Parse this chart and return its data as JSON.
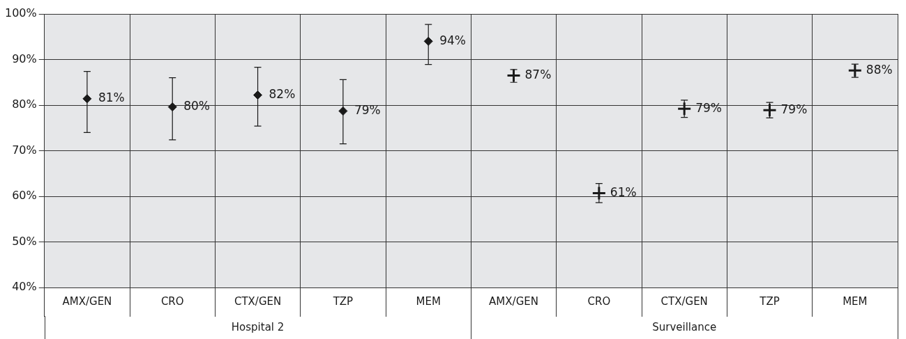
{
  "chart_data": {
    "type": "scatter",
    "categories": [
      "AMX/GEN",
      "CRO",
      "CTX/GEN",
      "TZP",
      "MEM",
      "AMX/GEN",
      "CRO",
      "CTX/GEN",
      "TZP",
      "MEM"
    ],
    "series": [
      {
        "color": "#1a1a1a",
        "marker": "diamond",
        "values": [
          81.4,
          79.6,
          82.2,
          78.7,
          94.0,
          null,
          null,
          null,
          null,
          null
        ],
        "errors": [
          [
            74.0,
            87.4
          ],
          [
            72.4,
            86.0
          ],
          [
            75.4,
            88.3
          ],
          [
            71.5,
            85.6
          ],
          [
            88.9,
            97.7
          ],
          null,
          null,
          null,
          null,
          null
        ],
        "value_labels": [
          "81%",
          "80%",
          "82%",
          "79%",
          "94%",
          null,
          null,
          null,
          null,
          null
        ]
      },
      {
        "color": "#1a1a1a",
        "marker": "cross",
        "values": [
          null,
          null,
          null,
          null,
          null,
          86.5,
          60.7,
          79.2,
          78.9,
          87.6
        ],
        "errors": [
          null,
          null,
          null,
          null,
          null,
          [
            85.0,
            87.8
          ],
          [
            58.6,
            62.8
          ],
          [
            77.3,
            81.1
          ],
          [
            77.2,
            80.6
          ],
          [
            86.1,
            89.0
          ]
        ],
        "value_labels": [
          null,
          null,
          null,
          null,
          null,
          "87%",
          "61%",
          "79%",
          "79%",
          "88%"
        ]
      }
    ],
    "ylim": [
      40,
      100
    ],
    "yticks": [
      {
        "value": 40,
        "label": "40%"
      },
      {
        "value": 50,
        "label": "50%"
      },
      {
        "value": 60,
        "label": "60%"
      },
      {
        "value": 70,
        "label": "70%"
      },
      {
        "value": 80,
        "label": "80%"
      },
      {
        "value": 90,
        "label": "90%"
      },
      {
        "value": 100,
        "label": "100%"
      }
    ],
    "annotations": [
      "Hospital 2",
      "Surveillance"
    ],
    "grid": true,
    "legend": false
  }
}
